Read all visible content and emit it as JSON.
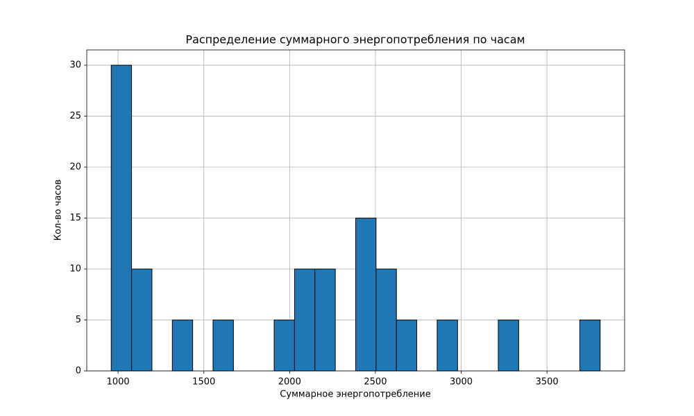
{
  "chart_data": {
    "type": "histogram",
    "title": "Распределение суммарного энергопотребления по часам",
    "xlabel": "Суммарное энергопотребление",
    "ylabel": "Кол-во часов",
    "bins": [
      960,
      1078.75,
      1197.5,
      1316.25,
      1435,
      1553.75,
      1672.5,
      1791.25,
      1910,
      2028.75,
      2147.5,
      2266.25,
      2385,
      2503.75,
      2622.5,
      2741.25,
      2860,
      2978.75,
      3097.5,
      3216.25,
      3335,
      3453.75,
      3572.5,
      3691.25,
      3810
    ],
    "values": [
      30,
      10,
      0,
      5,
      0,
      5,
      0,
      0,
      5,
      10,
      10,
      0,
      15,
      10,
      5,
      0,
      5,
      0,
      0,
      5,
      0,
      0,
      0,
      5
    ],
    "color": "#1f77b4",
    "xlim": [
      817.5,
      3952.5
    ],
    "xticks": [
      1000,
      1500,
      2000,
      2500,
      3000,
      3500
    ],
    "ylim": [
      0,
      31.5
    ],
    "yticks": [
      0,
      5,
      10,
      15,
      20,
      25,
      30
    ],
    "grid": true
  }
}
